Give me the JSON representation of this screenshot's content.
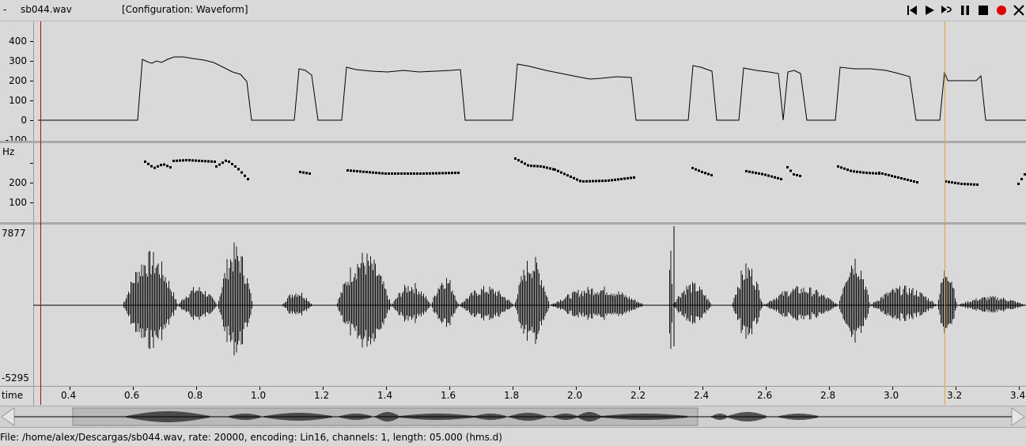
{
  "window": {
    "dash": "-",
    "filename": "sb044.wav",
    "configuration": "[Configuration: Waveform]",
    "controls": [
      "skip-back-icon",
      "play-icon",
      "loop-icon",
      "pause-icon",
      "stop-icon",
      "record-icon",
      "close-icon"
    ],
    "record_color": "#e00000"
  },
  "pitch_panel": {
    "y_ticks": [
      "400",
      "300",
      "200",
      "100",
      "0",
      "-100"
    ]
  },
  "f0_panel": {
    "unit": "Hz",
    "y_ticks": [
      "200",
      "100"
    ]
  },
  "wave_panel": {
    "max": "7877",
    "min": "-5295"
  },
  "time_axis": {
    "label": "time",
    "ticks": [
      "0.4",
      "0.6",
      "0.8",
      "1.0",
      "1.2",
      "1.4",
      "1.6",
      "1.8",
      "2.0",
      "2.2",
      "2.4",
      "2.6",
      "2.8",
      "3.0",
      "3.2",
      "3.4"
    ]
  },
  "cursors": {
    "left_color": "#d00000",
    "right_color": "#f0a030"
  },
  "status_bar": {
    "text": "File: /home/alex/Descargas/sb044.wav, rate: 20000, encoding: Lin16, channels: 1, length: 05.000 (hms.d)"
  }
}
